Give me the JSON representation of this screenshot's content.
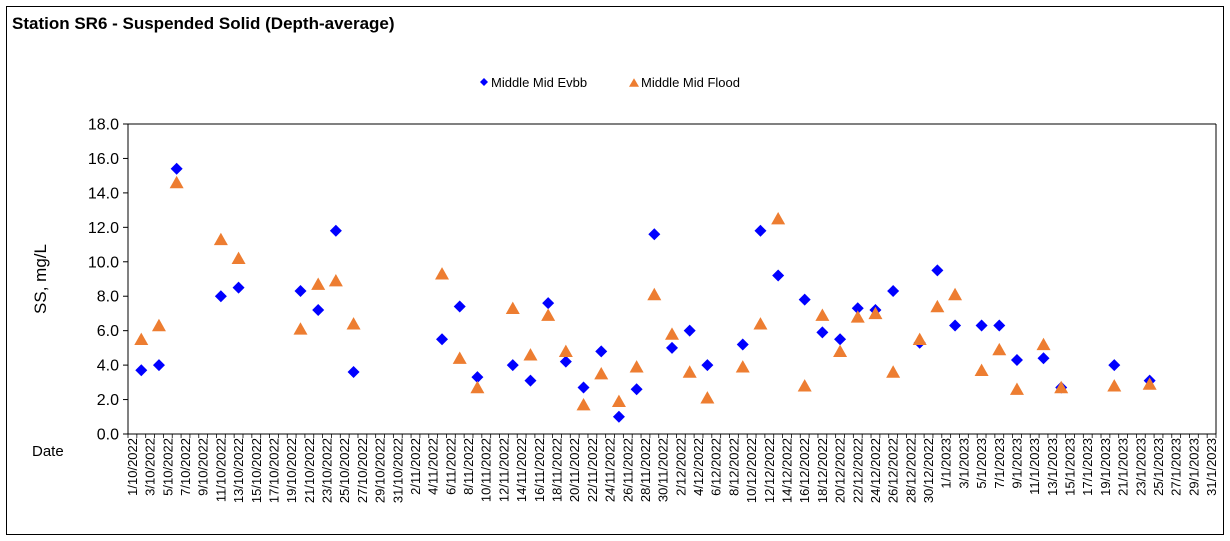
{
  "chart_data": {
    "type": "scatter",
    "title": "Station SR6 - Suspended Solid (Depth-average)",
    "xlabel": "Date",
    "ylabel": "SS, mg/L",
    "ylim": [
      0,
      18
    ],
    "yticks": [
      "0.0",
      "2.0",
      "4.0",
      "6.0",
      "8.0",
      "10.0",
      "12.0",
      "14.0",
      "16.0",
      "18.0"
    ],
    "xticks": [
      "1/10/2022",
      "3/10/2022",
      "5/10/2022",
      "7/10/2022",
      "9/10/2022",
      "11/10/2022",
      "13/10/2022",
      "15/10/2022",
      "17/10/2022",
      "19/10/2022",
      "21/10/2022",
      "23/10/2022",
      "25/10/2022",
      "27/10/2022",
      "29/10/2022",
      "31/10/2022",
      "2/11/2022",
      "4/11/2022",
      "6/11/2022",
      "8/11/2022",
      "10/11/2022",
      "12/11/2022",
      "14/11/2022",
      "16/11/2022",
      "18/11/2022",
      "20/11/2022",
      "22/11/2022",
      "24/11/2022",
      "26/11/2022",
      "28/11/2022",
      "30/11/2022",
      "2/12/2022",
      "4/12/2022",
      "6/12/2022",
      "8/12/2022",
      "10/12/2022",
      "12/12/2022",
      "14/12/2022",
      "16/12/2022",
      "18/12/2022",
      "20/12/2022",
      "22/12/2022",
      "24/12/2022",
      "26/12/2022",
      "28/12/2022",
      "30/12/2022",
      "1/1/2023",
      "3/1/2023",
      "5/1/2023",
      "7/1/2023",
      "9/1/2023",
      "11/1/2023",
      "13/1/2023",
      "15/1/2023",
      "17/1/2023",
      "19/1/2023",
      "21/1/2023",
      "23/1/2023",
      "25/1/2023",
      "27/1/2023",
      "29/1/2023",
      "31/1/2023"
    ],
    "legend_position": "top",
    "grid": false,
    "series": [
      {
        "name": "Middle Mid Evbb",
        "color": "#0000FF",
        "marker": "diamond",
        "points": [
          {
            "x": "2/10/2022",
            "y": 3.7
          },
          {
            "x": "4/10/2022",
            "y": 4.0
          },
          {
            "x": "6/10/2022",
            "y": 15.4
          },
          {
            "x": "11/10/2022",
            "y": 8.0
          },
          {
            "x": "13/10/2022",
            "y": 8.5
          },
          {
            "x": "20/10/2022",
            "y": 8.3
          },
          {
            "x": "22/10/2022",
            "y": 7.2
          },
          {
            "x": "24/10/2022",
            "y": 11.8
          },
          {
            "x": "26/10/2022",
            "y": 3.6
          },
          {
            "x": "5/11/2022",
            "y": 5.5
          },
          {
            "x": "7/11/2022",
            "y": 7.4
          },
          {
            "x": "9/11/2022",
            "y": 3.3
          },
          {
            "x": "13/11/2022",
            "y": 4.0
          },
          {
            "x": "15/11/2022",
            "y": 3.1
          },
          {
            "x": "17/11/2022",
            "y": 7.6
          },
          {
            "x": "19/11/2022",
            "y": 4.2
          },
          {
            "x": "21/11/2022",
            "y": 2.7
          },
          {
            "x": "23/11/2022",
            "y": 4.8
          },
          {
            "x": "25/11/2022",
            "y": 1.0
          },
          {
            "x": "27/11/2022",
            "y": 2.6
          },
          {
            "x": "29/11/2022",
            "y": 11.6
          },
          {
            "x": "1/12/2022",
            "y": 5.0
          },
          {
            "x": "3/12/2022",
            "y": 6.0
          },
          {
            "x": "5/12/2022",
            "y": 4.0
          },
          {
            "x": "9/12/2022",
            "y": 5.2
          },
          {
            "x": "11/12/2022",
            "y": 11.8
          },
          {
            "x": "13/12/2022",
            "y": 9.2
          },
          {
            "x": "16/12/2022",
            "y": 7.8
          },
          {
            "x": "18/12/2022",
            "y": 5.9
          },
          {
            "x": "20/12/2022",
            "y": 5.5
          },
          {
            "x": "22/12/2022",
            "y": 7.3
          },
          {
            "x": "24/12/2022",
            "y": 7.2
          },
          {
            "x": "26/12/2022",
            "y": 8.3
          },
          {
            "x": "29/12/2022",
            "y": 5.3
          },
          {
            "x": "31/12/2022",
            "y": 9.5
          },
          {
            "x": "2/1/2023",
            "y": 6.3
          },
          {
            "x": "5/1/2023",
            "y": 6.3
          },
          {
            "x": "7/1/2023",
            "y": 6.3
          },
          {
            "x": "9/1/2023",
            "y": 4.3
          },
          {
            "x": "12/1/2023",
            "y": 4.4
          },
          {
            "x": "14/1/2023",
            "y": 2.7
          },
          {
            "x": "20/1/2023",
            "y": 4.0
          },
          {
            "x": "24/1/2023",
            "y": 3.1
          }
        ]
      },
      {
        "name": "Middle Mid Flood",
        "color": "#ED7D31",
        "marker": "triangle",
        "points": [
          {
            "x": "2/10/2022",
            "y": 5.5
          },
          {
            "x": "4/10/2022",
            "y": 6.3
          },
          {
            "x": "6/10/2022",
            "y": 14.6
          },
          {
            "x": "11/10/2022",
            "y": 11.3
          },
          {
            "x": "13/10/2022",
            "y": 10.2
          },
          {
            "x": "20/10/2022",
            "y": 6.1
          },
          {
            "x": "22/10/2022",
            "y": 8.7
          },
          {
            "x": "24/10/2022",
            "y": 8.9
          },
          {
            "x": "26/10/2022",
            "y": 6.4
          },
          {
            "x": "5/11/2022",
            "y": 9.3
          },
          {
            "x": "7/11/2022",
            "y": 4.4
          },
          {
            "x": "9/11/2022",
            "y": 2.7
          },
          {
            "x": "13/11/2022",
            "y": 7.3
          },
          {
            "x": "15/11/2022",
            "y": 4.6
          },
          {
            "x": "17/11/2022",
            "y": 6.9
          },
          {
            "x": "19/11/2022",
            "y": 4.8
          },
          {
            "x": "21/11/2022",
            "y": 1.7
          },
          {
            "x": "23/11/2022",
            "y": 3.5
          },
          {
            "x": "25/11/2022",
            "y": 1.9
          },
          {
            "x": "27/11/2022",
            "y": 3.9
          },
          {
            "x": "29/11/2022",
            "y": 8.1
          },
          {
            "x": "1/12/2022",
            "y": 5.8
          },
          {
            "x": "3/12/2022",
            "y": 3.6
          },
          {
            "x": "5/12/2022",
            "y": 2.1
          },
          {
            "x": "9/12/2022",
            "y": 3.9
          },
          {
            "x": "11/12/2022",
            "y": 6.4
          },
          {
            "x": "13/12/2022",
            "y": 12.5
          },
          {
            "x": "16/12/2022",
            "y": 2.8
          },
          {
            "x": "18/12/2022",
            "y": 6.9
          },
          {
            "x": "20/12/2022",
            "y": 4.8
          },
          {
            "x": "22/12/2022",
            "y": 6.8
          },
          {
            "x": "24/12/2022",
            "y": 7.0
          },
          {
            "x": "26/12/2022",
            "y": 3.6
          },
          {
            "x": "29/12/2022",
            "y": 5.5
          },
          {
            "x": "31/12/2022",
            "y": 7.4
          },
          {
            "x": "2/1/2023",
            "y": 8.1
          },
          {
            "x": "5/1/2023",
            "y": 3.7
          },
          {
            "x": "7/1/2023",
            "y": 4.9
          },
          {
            "x": "9/1/2023",
            "y": 2.6
          },
          {
            "x": "12/1/2023",
            "y": 5.2
          },
          {
            "x": "14/1/2023",
            "y": 2.7
          },
          {
            "x": "20/1/2023",
            "y": 2.8
          },
          {
            "x": "24/1/2023",
            "y": 2.9
          }
        ]
      }
    ]
  }
}
